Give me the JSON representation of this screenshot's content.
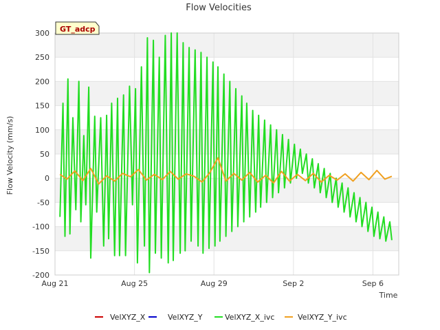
{
  "chart_data": {
    "type": "line",
    "title": "Flow Velocities",
    "xlabel": "Time",
    "ylabel": "Flow Velocity (mm/s)",
    "badge": "GT_adcp",
    "ylim": [
      -200,
      300
    ],
    "xlim": [
      0,
      17.3
    ],
    "yticks": [
      -200,
      -150,
      -100,
      -50,
      0,
      50,
      100,
      150,
      200,
      250,
      300
    ],
    "xticks": [
      {
        "x": 0,
        "label": "Aug 21"
      },
      {
        "x": 4,
        "label": "Aug 25"
      },
      {
        "x": 8,
        "label": "Aug 29"
      },
      {
        "x": 12,
        "label": "Sep 2"
      },
      {
        "x": 16,
        "label": "Sep 6"
      }
    ],
    "grid": true,
    "legend_position": "bottom",
    "series": [
      {
        "name": "VelXYZ_X",
        "color": "#cc0000",
        "x": [],
        "y": []
      },
      {
        "name": "VelXYZ_Y",
        "color": "#0000cc",
        "x": [],
        "y": []
      },
      {
        "name": "VelXYZ_X_ivc",
        "color": "#22dd22",
        "x": [
          0.25,
          0.4,
          0.5,
          0.65,
          0.75,
          0.9,
          1.05,
          1.2,
          1.3,
          1.45,
          1.55,
          1.7,
          1.8,
          2.0,
          2.1,
          2.3,
          2.45,
          2.6,
          2.7,
          2.85,
          3.0,
          3.15,
          3.25,
          3.45,
          3.55,
          3.75,
          3.9,
          4.05,
          4.15,
          4.35,
          4.5,
          4.65,
          4.75,
          4.95,
          5.05,
          5.25,
          5.35,
          5.55,
          5.7,
          5.85,
          5.95,
          6.15,
          6.3,
          6.45,
          6.55,
          6.75,
          6.85,
          7.05,
          7.2,
          7.35,
          7.45,
          7.65,
          7.75,
          7.95,
          8.05,
          8.2,
          8.3,
          8.5,
          8.6,
          8.8,
          8.9,
          9.1,
          9.2,
          9.4,
          9.5,
          9.65,
          9.8,
          9.95,
          10.1,
          10.25,
          10.35,
          10.55,
          10.65,
          10.85,
          10.95,
          11.15,
          11.25,
          11.45,
          11.55,
          11.75,
          11.85,
          12.05,
          12.15,
          12.35,
          12.45,
          12.65,
          12.75,
          12.95,
          13.05,
          13.25,
          13.35,
          13.55,
          13.65,
          13.85,
          13.95,
          14.15,
          14.25,
          14.45,
          14.55,
          14.75,
          14.85,
          15.05,
          15.15,
          15.35,
          15.45,
          15.65,
          15.75,
          15.95,
          16.05,
          16.25,
          16.35,
          16.55,
          16.65,
          16.85,
          16.95
        ],
        "y": [
          -80,
          155,
          -120,
          205,
          -115,
          125,
          -65,
          200,
          -90,
          88,
          -55,
          188,
          -165,
          128,
          -70,
          125,
          -140,
          130,
          -125,
          155,
          -160,
          165,
          -160,
          172,
          -160,
          190,
          -55,
          185,
          -175,
          230,
          -140,
          290,
          -195,
          285,
          -155,
          250,
          -165,
          295,
          -175,
          300,
          -170,
          300,
          -155,
          280,
          -150,
          270,
          -130,
          265,
          -140,
          260,
          -155,
          250,
          -145,
          240,
          -140,
          230,
          -130,
          215,
          -120,
          200,
          -110,
          185,
          -100,
          170,
          -90,
          155,
          -80,
          140,
          -70,
          130,
          -60,
          120,
          -50,
          110,
          -40,
          100,
          -30,
          90,
          -20,
          80,
          -10,
          70,
          0,
          60,
          10,
          50,
          -10,
          40,
          -20,
          30,
          -30,
          20,
          -40,
          10,
          -50,
          0,
          -60,
          -10,
          -70,
          -20,
          -80,
          -30,
          -90,
          -40,
          -100,
          -50,
          -110,
          -60,
          -120,
          -70,
          -125,
          -80,
          -130,
          -90,
          -128
        ]
      },
      {
        "name": "VelXYZ_Y_ivc",
        "color": "#f0a020",
        "x": [
          0.25,
          0.6,
          1.0,
          1.4,
          1.8,
          2.2,
          2.6,
          3.0,
          3.4,
          3.8,
          4.2,
          4.6,
          5.0,
          5.4,
          5.8,
          6.2,
          6.6,
          7.0,
          7.4,
          7.8,
          8.2,
          8.6,
          9.0,
          9.4,
          9.8,
          10.2,
          10.6,
          11.0,
          11.4,
          11.8,
          12.2,
          12.6,
          13.0,
          13.4,
          13.8,
          14.2,
          14.6,
          15.0,
          15.4,
          15.8,
          16.2,
          16.6,
          16.95
        ],
        "y": [
          8,
          -2,
          15,
          -5,
          20,
          -12,
          5,
          -6,
          10,
          3,
          18,
          -4,
          8,
          -3,
          14,
          -2,
          9,
          4,
          -8,
          12,
          42,
          -6,
          10,
          -4,
          12,
          -8,
          6,
          -10,
          14,
          -6,
          8,
          -5,
          10,
          -8,
          6,
          -4,
          9,
          -6,
          12,
          -3,
          16,
          -2,
          4
        ]
      }
    ]
  }
}
